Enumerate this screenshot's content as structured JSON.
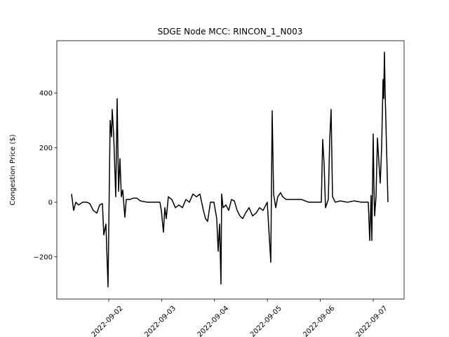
{
  "chart_data": {
    "type": "line",
    "title": "SDGE Node MCC: RINCON_1_N003",
    "ylabel": "Congestion Price ($)",
    "color": "#000000",
    "xlim": [
      19236.019,
      19242.584
    ],
    "ylim": [
      -355,
      592
    ],
    "xticks": [
      {
        "value": 19237,
        "label": "2022-09-02"
      },
      {
        "value": 19238,
        "label": "2022-09-03"
      },
      {
        "value": 19239,
        "label": "2022-09-04"
      },
      {
        "value": 19240,
        "label": "2022-09-05"
      },
      {
        "value": 19241,
        "label": "2022-09-06"
      },
      {
        "value": 19242,
        "label": "2022-09-07"
      }
    ],
    "yticks": [
      {
        "value": -200,
        "label": "−200"
      },
      0,
      200,
      400
    ],
    "x": [
      19236.297,
      19236.337,
      19236.377,
      19236.43,
      19236.509,
      19236.589,
      19236.642,
      19236.708,
      19236.775,
      19236.828,
      19236.881,
      19236.907,
      19236.947,
      19236.987,
      19237.027,
      19237.053,
      19237.066,
      19237.093,
      19237.133,
      19237.159,
      19237.186,
      19237.212,
      19237.239,
      19237.265,
      19237.305,
      19237.332,
      19237.398,
      19237.464,
      19237.531,
      19237.597,
      19237.729,
      19237.862,
      19237.968,
      19237.995,
      19238.034,
      19238.061,
      19238.088,
      19238.127,
      19238.194,
      19238.26,
      19238.326,
      19238.393,
      19238.459,
      19238.525,
      19238.592,
      19238.658,
      19238.724,
      19238.79,
      19238.83,
      19238.87,
      19238.923,
      19238.989,
      19239.042,
      19239.069,
      19239.096,
      19239.122,
      19239.135,
      19239.162,
      19239.215,
      19239.268,
      19239.321,
      19239.374,
      19239.427,
      19239.48,
      19239.533,
      19239.586,
      19239.653,
      19239.719,
      19239.785,
      19239.851,
      19239.918,
      19239.997,
      19240.064,
      19240.09,
      19240.117,
      19240.157,
      19240.196,
      19240.249,
      19240.289,
      19240.356,
      19240.448,
      19240.647,
      19240.78,
      19240.913,
      19241.019,
      19241.045,
      19241.072,
      19241.098,
      19241.151,
      19241.178,
      19241.204,
      19241.231,
      19241.284,
      19241.377,
      19241.509,
      19241.642,
      19241.775,
      19241.907,
      19241.934,
      19241.96,
      19241.974,
      19242.0,
      19242.013,
      19242.027,
      19242.053,
      19242.08,
      19242.106,
      19242.133,
      19242.159,
      19242.186,
      19242.199,
      19242.212,
      19242.226,
      19242.252,
      19242.279
    ],
    "values": [
      30,
      -30,
      0,
      -10,
      0,
      0,
      -5,
      -30,
      -40,
      -10,
      -5,
      -120,
      -80,
      -310,
      300,
      240,
      340,
      250,
      20,
      380,
      40,
      160,
      20,
      45,
      -55,
      10,
      10,
      15,
      15,
      5,
      0,
      0,
      0,
      -30,
      -110,
      -20,
      -60,
      20,
      10,
      -20,
      -10,
      -20,
      10,
      0,
      30,
      20,
      30,
      -30,
      -60,
      -70,
      0,
      0,
      -60,
      -180,
      -80,
      -300,
      30,
      -20,
      -10,
      -30,
      10,
      5,
      -30,
      -50,
      -60,
      -40,
      -20,
      -50,
      -40,
      -20,
      -30,
      0,
      -220,
      335,
      30,
      -20,
      20,
      35,
      20,
      10,
      10,
      10,
      0,
      0,
      0,
      230,
      140,
      -20,
      10,
      230,
      340,
      20,
      0,
      5,
      0,
      5,
      0,
      0,
      -140,
      25,
      -140,
      250,
      70,
      -50,
      20,
      235,
      150,
      70,
      200,
      450,
      380,
      550,
      400,
      200,
      0
    ]
  }
}
